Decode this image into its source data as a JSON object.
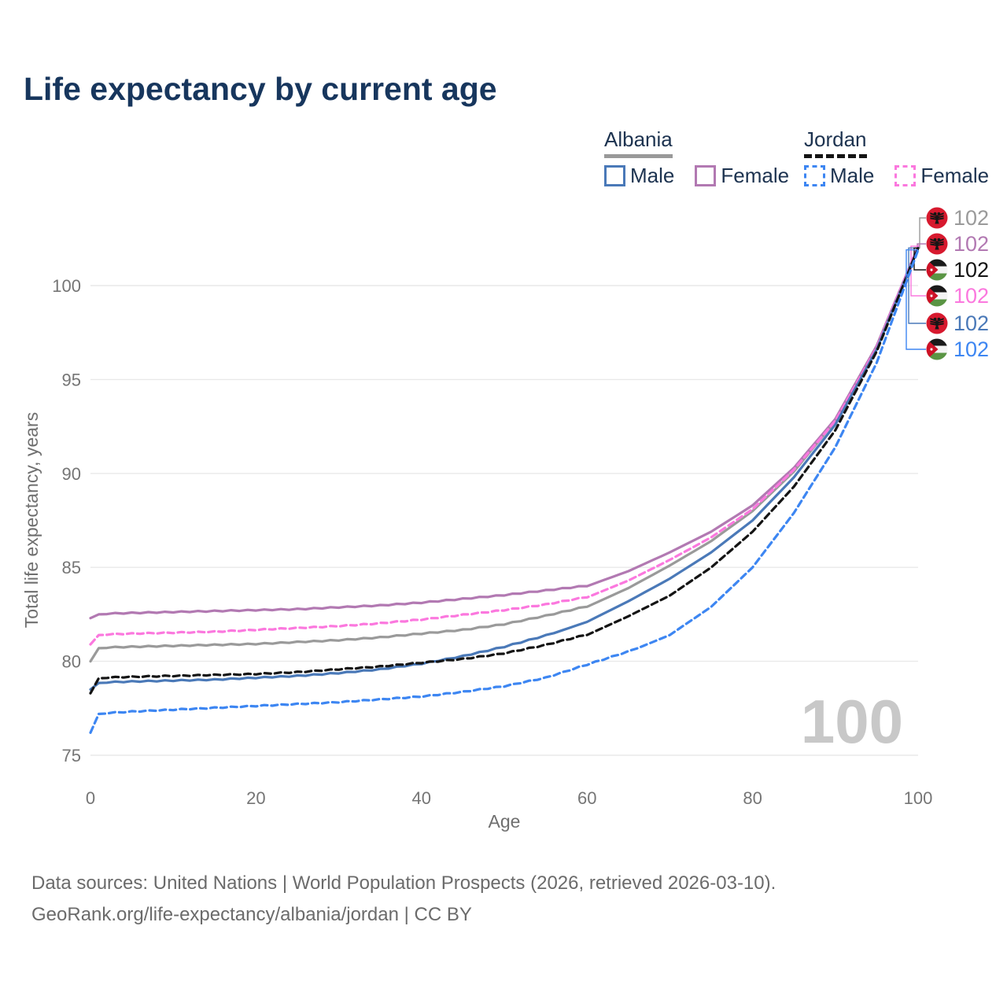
{
  "title": "Life expectancy by current age",
  "watermark_age": "100",
  "legend": {
    "groups": [
      {
        "country": "Albania",
        "line_style": "solid",
        "underline_color": "#999999",
        "items": [
          {
            "label": "Male",
            "color": "#4a79b8"
          },
          {
            "label": "Female",
            "color": "#b279b2"
          }
        ]
      },
      {
        "country": "Jordan",
        "line_style": "dashed",
        "underline_color": "#141414",
        "items": [
          {
            "label": "Male",
            "color": "#3d86f2"
          },
          {
            "label": "Female",
            "color": "#fb78de"
          }
        ]
      }
    ]
  },
  "footer": {
    "line1": "Data sources: United Nations | World Population Prospects (2026, retrieved 2026-03-10).",
    "line2": "GeoRank.org/life-expectancy/albania/jordan | CC BY"
  },
  "chart_data": {
    "type": "line",
    "title": "Life expectancy by current age",
    "xlabel": "Age",
    "ylabel": "Total life expectancy, years",
    "x_ticks": [
      0,
      20,
      40,
      60,
      80,
      100
    ],
    "y_ticks": [
      75,
      80,
      85,
      90,
      95,
      100
    ],
    "xlim": [
      0,
      100
    ],
    "ylim": [
      74.5,
      103.5
    ],
    "grid": "horizontal-only",
    "legend_position": "top-right",
    "x": [
      0,
      1,
      5,
      10,
      15,
      20,
      25,
      30,
      35,
      40,
      45,
      50,
      55,
      60,
      65,
      70,
      75,
      80,
      85,
      90,
      95,
      100
    ],
    "series": [
      {
        "name": "Albania All",
        "country": "Albania",
        "sex": "All",
        "color": "#9a9a9a",
        "dashed": false,
        "flag": "albania",
        "end_label": "102",
        "label_row": 0,
        "values": [
          80.0,
          80.7,
          80.75,
          80.8,
          80.85,
          80.9,
          81.0,
          81.1,
          81.25,
          81.45,
          81.65,
          81.95,
          82.4,
          82.9,
          83.9,
          85.1,
          86.4,
          88.0,
          90.1,
          92.8,
          96.7,
          102.0
        ]
      },
      {
        "name": "Albania Female",
        "country": "Albania",
        "sex": "Female",
        "color": "#b279b2",
        "dashed": false,
        "flag": "albania",
        "end_label": "102",
        "label_row": 1,
        "values": [
          82.3,
          82.5,
          82.55,
          82.6,
          82.65,
          82.7,
          82.75,
          82.85,
          82.95,
          83.1,
          83.3,
          83.5,
          83.75,
          84.0,
          84.8,
          85.8,
          86.9,
          88.3,
          90.3,
          92.9,
          96.8,
          102.1
        ]
      },
      {
        "name": "Jordan Female",
        "country": "Jordan",
        "sex": "Female",
        "color": "#fb78de",
        "dashed": true,
        "flag": "jordan",
        "end_label": "102",
        "label_row": 3,
        "values": [
          80.9,
          81.4,
          81.45,
          81.5,
          81.55,
          81.65,
          81.75,
          81.85,
          82.0,
          82.2,
          82.45,
          82.7,
          83.0,
          83.4,
          84.3,
          85.4,
          86.6,
          88.1,
          90.2,
          92.8,
          96.7,
          102.1
        ]
      },
      {
        "name": "Albania Male",
        "country": "Albania",
        "sex": "Male",
        "color": "#4a79b8",
        "dashed": false,
        "flag": "albania",
        "end_label": "102",
        "label_row": 4,
        "values": [
          78.5,
          78.85,
          78.9,
          78.95,
          79.0,
          79.1,
          79.2,
          79.35,
          79.55,
          79.85,
          80.25,
          80.75,
          81.35,
          82.1,
          83.2,
          84.4,
          85.8,
          87.5,
          89.8,
          92.6,
          96.6,
          102.0
        ]
      },
      {
        "name": "Jordan All",
        "country": "Jordan",
        "sex": "All",
        "color": "#141414",
        "dashed": true,
        "flag": "jordan",
        "end_label": "102",
        "label_row": 2,
        "values": [
          78.3,
          79.1,
          79.15,
          79.2,
          79.25,
          79.3,
          79.4,
          79.55,
          79.7,
          79.9,
          80.1,
          80.4,
          80.85,
          81.4,
          82.4,
          83.5,
          85.0,
          86.9,
          89.3,
          92.3,
          96.5,
          102.0
        ]
      },
      {
        "name": "Jordan Male",
        "country": "Jordan",
        "sex": "Male",
        "color": "#3d86f2",
        "dashed": true,
        "flag": "jordan",
        "end_label": "102",
        "label_row": 5,
        "values": [
          76.2,
          77.2,
          77.3,
          77.4,
          77.5,
          77.6,
          77.7,
          77.8,
          77.95,
          78.1,
          78.35,
          78.65,
          79.1,
          79.8,
          80.5,
          81.4,
          82.9,
          85.0,
          87.9,
          91.4,
          95.9,
          101.9
        ]
      }
    ]
  }
}
